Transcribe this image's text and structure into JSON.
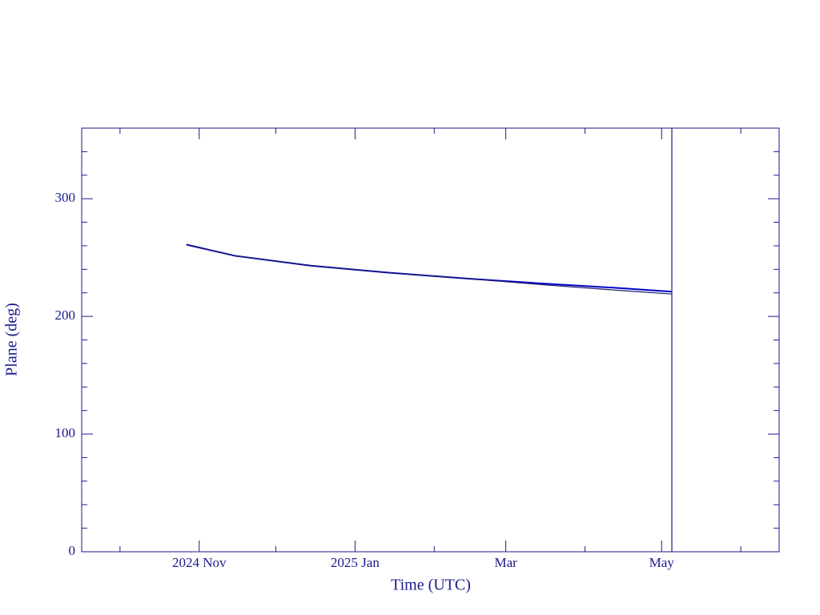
{
  "chart_data": {
    "type": "line",
    "x_label": "Time (UTC)",
    "y_label": "Plane (deg)",
    "x": [
      "2024-10-27",
      "2024-11-15",
      "2024-12-15",
      "2025-01-15",
      "2025-02-15",
      "2025-03-15",
      "2025-04-15",
      "2025-05-05"
    ],
    "series": [
      {
        "color": "#0000c8",
        "values": [
          261,
          251.5,
          243,
          237,
          232,
          228,
          224,
          221
        ]
      },
      {
        "color": "#1a1a6e",
        "values": [
          261,
          251.5,
          243,
          237,
          232,
          227,
          222,
          219
        ]
      }
    ],
    "xlim": [
      "2024-09-16",
      "2025-06-16"
    ],
    "xticks": [
      {
        "value": "2024-11-01",
        "label": "2024 Nov"
      },
      {
        "value": "2025-01-01",
        "label": "2025 Jan"
      },
      {
        "value": "2025-03-01",
        "label": "Mar"
      },
      {
        "value": "2025-05-01",
        "label": "May"
      }
    ],
    "xminorticks": [
      "2024-10-01",
      "2024-12-01",
      "2025-02-01",
      "2025-04-01",
      "2025-06-01"
    ],
    "ylim": [
      0,
      360
    ],
    "yticks": [
      0,
      100,
      200,
      300
    ],
    "yminorticks": [
      20,
      40,
      60,
      80,
      120,
      140,
      160,
      180,
      220,
      240,
      260,
      280,
      320,
      340
    ],
    "vline": "2025-05-05",
    "axis_color": "#1a1a8c"
  }
}
